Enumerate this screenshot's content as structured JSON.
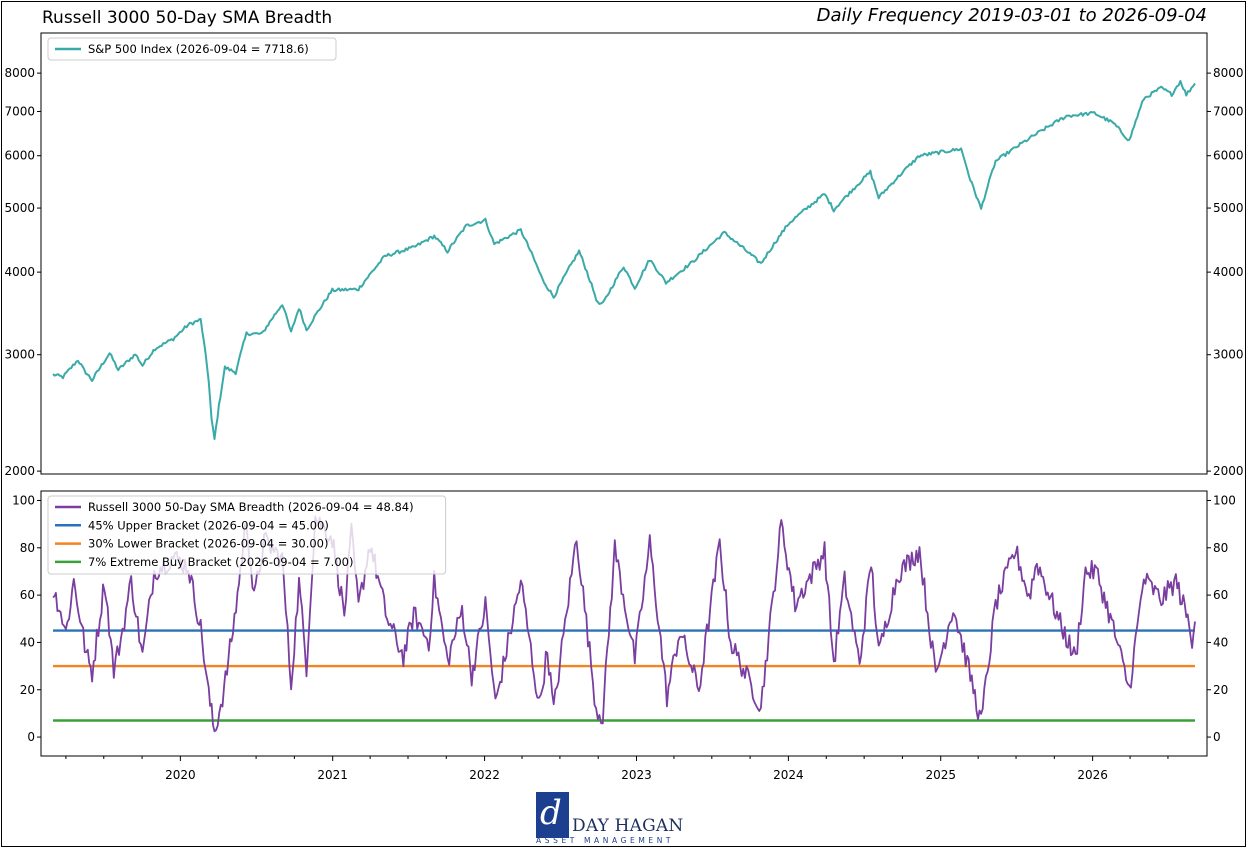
{
  "title": "Russell 3000 50-Day SMA Breadth",
  "subtitle": "Daily Frequency 2019-03-01 to 2026-09-04",
  "logo": {
    "name": "DAY HAGAN",
    "tagline": "ASSET MANAGEMENT",
    "mark": "d"
  },
  "chart_data": [
    {
      "type": "line",
      "yscale": "log",
      "ylim": [
        1980,
        9200
      ],
      "yticks": [
        2000,
        3000,
        4000,
        5000,
        6000,
        7000,
        8000
      ],
      "legend_position": "top-left",
      "series": [
        {
          "name": "S&P 500 Index (2026-09-04 = 7718.6)",
          "color": "#3aaaa8",
          "points": [
            [
              "2019-03-01",
              2800
            ],
            [
              "2019-03-25",
              2775
            ],
            [
              "2019-04-30",
              2945
            ],
            [
              "2019-05-15",
              2840
            ],
            [
              "2019-06-03",
              2745
            ],
            [
              "2019-07-15",
              3015
            ],
            [
              "2019-08-05",
              2845
            ],
            [
              "2019-09-15",
              3005
            ],
            [
              "2019-10-02",
              2890
            ],
            [
              "2019-11-01",
              3065
            ],
            [
              "2019-12-15",
              3170
            ],
            [
              "2020-01-20",
              3330
            ],
            [
              "2020-02-19",
              3390
            ],
            [
              "2020-03-09",
              2745
            ],
            [
              "2020-03-16",
              2390
            ],
            [
              "2020-03-23",
              2235
            ],
            [
              "2020-04-17",
              2870
            ],
            [
              "2020-05-13",
              2820
            ],
            [
              "2020-06-08",
              3230
            ],
            [
              "2020-07-15",
              3225
            ],
            [
              "2020-09-02",
              3580
            ],
            [
              "2020-09-23",
              3240
            ],
            [
              "2020-10-12",
              3530
            ],
            [
              "2020-10-30",
              3270
            ],
            [
              "2020-12-31",
              3755
            ],
            [
              "2021-03-04",
              3770
            ],
            [
              "2021-05-07",
              4230
            ],
            [
              "2021-07-15",
              4360
            ],
            [
              "2021-09-02",
              4535
            ],
            [
              "2021-10-04",
              4300
            ],
            [
              "2021-11-18",
              4700
            ],
            [
              "2022-01-03",
              4795
            ],
            [
              "2022-01-24",
              4410
            ],
            [
              "2022-03-29",
              4630
            ],
            [
              "2022-05-20",
              3900
            ],
            [
              "2022-06-16",
              3665
            ],
            [
              "2022-08-16",
              4305
            ],
            [
              "2022-09-30",
              3585
            ],
            [
              "2022-10-12",
              3580
            ],
            [
              "2022-12-01",
              4080
            ],
            [
              "2022-12-28",
              3785
            ],
            [
              "2023-02-02",
              4180
            ],
            [
              "2023-03-13",
              3855
            ],
            [
              "2023-05-15",
              4140
            ],
            [
              "2023-07-31",
              4590
            ],
            [
              "2023-10-27",
              4120
            ],
            [
              "2024-01-02",
              4740
            ],
            [
              "2024-03-28",
              5250
            ],
            [
              "2024-04-19",
              4970
            ],
            [
              "2024-07-16",
              5670
            ],
            [
              "2024-08-05",
              5185
            ],
            [
              "2024-11-11",
              6000
            ],
            [
              "2025-02-19",
              6145
            ],
            [
              "2025-03-13",
              5520
            ],
            [
              "2025-04-08",
              4985
            ],
            [
              "2025-05-13",
              5885
            ],
            [
              "2025-08-15",
              6450
            ],
            [
              "2025-10-30",
              6890
            ],
            [
              "2026-01-05",
              6960
            ],
            [
              "2026-02-20",
              6720
            ],
            [
              "2026-03-30",
              6320
            ],
            [
              "2026-05-04",
              7320
            ],
            [
              "2026-06-15",
              7600
            ],
            [
              "2026-07-10",
              7430
            ],
            [
              "2026-07-31",
              7780
            ],
            [
              "2026-08-14",
              7420
            ],
            [
              "2026-09-04",
              7718.6
            ]
          ]
        }
      ]
    },
    {
      "type": "line",
      "ylim": [
        -8,
        104
      ],
      "yticks": [
        0,
        20,
        40,
        60,
        80,
        100
      ],
      "xticks": [
        "2020",
        "2021",
        "2022",
        "2023",
        "2024",
        "2025",
        "2026"
      ],
      "legend_position": "top-left",
      "series": [
        {
          "name": "Russell 3000 50-Day SMA Breadth (2026-09-04 = 48.84)",
          "color": "#7a3ea0",
          "points": [
            [
              "2019-03-01",
              62
            ],
            [
              "2019-03-15",
              56
            ],
            [
              "2019-04-01",
              44
            ],
            [
              "2019-04-20",
              66
            ],
            [
              "2019-05-20",
              35
            ],
            [
              "2019-06-03",
              27
            ],
            [
              "2019-07-03",
              66
            ],
            [
              "2019-07-25",
              28
            ],
            [
              "2019-08-15",
              45
            ],
            [
              "2019-09-05",
              66
            ],
            [
              "2019-10-02",
              34
            ],
            [
              "2019-10-30",
              70
            ],
            [
              "2019-12-15",
              76
            ],
            [
              "2020-01-20",
              72
            ],
            [
              "2020-02-19",
              46
            ],
            [
              "2020-03-09",
              18
            ],
            [
              "2020-03-23",
              2
            ],
            [
              "2020-04-15",
              20
            ],
            [
              "2020-05-10",
              50
            ],
            [
              "2020-06-08",
              92
            ],
            [
              "2020-06-26",
              58
            ],
            [
              "2020-07-20",
              83
            ],
            [
              "2020-09-02",
              75
            ],
            [
              "2020-09-23",
              22
            ],
            [
              "2020-10-12",
              65
            ],
            [
              "2020-10-30",
              30
            ],
            [
              "2020-11-20",
              93
            ],
            [
              "2020-12-31",
              84
            ],
            [
              "2021-01-29",
              52
            ],
            [
              "2021-02-15",
              86
            ],
            [
              "2021-03-04",
              55
            ],
            [
              "2021-04-01",
              82
            ],
            [
              "2021-05-12",
              50
            ],
            [
              "2021-06-20",
              34
            ],
            [
              "2021-07-15",
              52
            ],
            [
              "2021-08-20",
              40
            ],
            [
              "2021-09-02",
              66
            ],
            [
              "2021-10-04",
              32
            ],
            [
              "2021-11-08",
              54
            ],
            [
              "2021-12-01",
              26
            ],
            [
              "2022-01-03",
              56
            ],
            [
              "2022-01-27",
              14
            ],
            [
              "2022-03-29",
              66
            ],
            [
              "2022-05-12",
              13
            ],
            [
              "2022-06-01",
              37
            ],
            [
              "2022-06-16",
              11
            ],
            [
              "2022-08-10",
              85
            ],
            [
              "2022-09-26",
              12
            ],
            [
              "2022-10-12",
              9
            ],
            [
              "2022-11-10",
              80
            ],
            [
              "2022-12-28",
              33
            ],
            [
              "2023-02-02",
              82
            ],
            [
              "2023-03-15",
              17
            ],
            [
              "2023-04-15",
              45
            ],
            [
              "2023-05-31",
              20
            ],
            [
              "2023-07-20",
              82
            ],
            [
              "2023-08-15",
              40
            ],
            [
              "2023-10-27",
              13
            ],
            [
              "2023-12-15",
              90
            ],
            [
              "2024-01-17",
              56
            ],
            [
              "2024-03-28",
              79
            ],
            [
              "2024-04-19",
              31
            ],
            [
              "2024-05-15",
              66
            ],
            [
              "2024-06-20",
              31
            ],
            [
              "2024-07-18",
              74
            ],
            [
              "2024-08-05",
              35
            ],
            [
              "2024-09-20",
              69
            ],
            [
              "2024-11-11",
              79
            ],
            [
              "2024-12-20",
              26
            ],
            [
              "2025-01-31",
              55
            ],
            [
              "2025-03-13",
              26
            ],
            [
              "2025-04-08",
              6
            ],
            [
              "2025-05-13",
              56
            ],
            [
              "2025-06-30",
              79
            ],
            [
              "2025-08-01",
              59
            ],
            [
              "2025-08-20",
              74
            ],
            [
              "2025-10-15",
              48
            ],
            [
              "2025-11-21",
              33
            ],
            [
              "2025-12-15",
              70
            ],
            [
              "2026-01-10",
              70
            ],
            [
              "2026-02-20",
              46
            ],
            [
              "2026-03-30",
              20
            ],
            [
              "2026-05-04",
              67
            ],
            [
              "2026-06-15",
              58
            ],
            [
              "2026-07-20",
              66
            ],
            [
              "2026-08-14",
              52
            ],
            [
              "2026-08-28",
              42
            ],
            [
              "2026-09-04",
              48.84
            ]
          ]
        },
        {
          "name": "45% Upper Bracket (2026-09-04 = 45.00)",
          "color": "#2a73b8",
          "constant": 45
        },
        {
          "name": "30% Lower Bracket (2026-09-04 = 30.00)",
          "color": "#f5831f",
          "constant": 30
        },
        {
          "name": "7% Extreme Buy Bracket (2026-09-04 = 7.00)",
          "color": "#3aa037",
          "constant": 7
        }
      ]
    }
  ]
}
